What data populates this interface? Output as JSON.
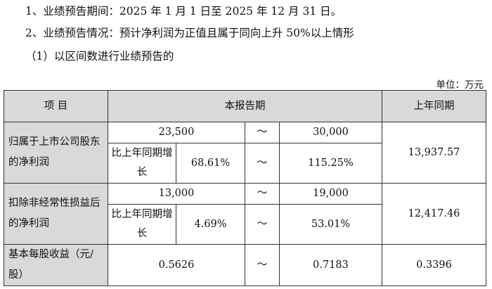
{
  "intro": {
    "line1": "1、业绩预告期间：2025 年 1 月 1 日至 2025 年 12 月 31 日。",
    "line2": "2、业绩预告情况：预计净利润为正值且属于同向上升 50%以上情形",
    "line3": "（1）以区间数进行业绩预告的",
    "unit": "单位：万元"
  },
  "table": {
    "headers": {
      "item": "项  目",
      "current": "本报告期",
      "prior": "上年同期"
    },
    "rows": [
      {
        "label": "归属于上市公司股东的净利润",
        "low": "23,500",
        "tilde": "～",
        "high": "30,000",
        "growth_label": "比上年同期增长",
        "growth_low": "68.61%",
        "growth_high": "115.25%",
        "prior": "13,937.57"
      },
      {
        "label": "扣除非经常性损益后的净利润",
        "low": "13,000",
        "tilde": "～",
        "high": "19,000",
        "growth_label": "比上年同期增长",
        "growth_low": "4.69%",
        "growth_high": "53.01%",
        "prior": "12,417.46"
      },
      {
        "label": "基本每股收益（元/股）",
        "low": "0.5626",
        "tilde": "～",
        "high": "0.7183",
        "prior": "0.3396"
      }
    ]
  },
  "colors": {
    "header_bg": "#d9d9d9",
    "border": "#333333"
  }
}
